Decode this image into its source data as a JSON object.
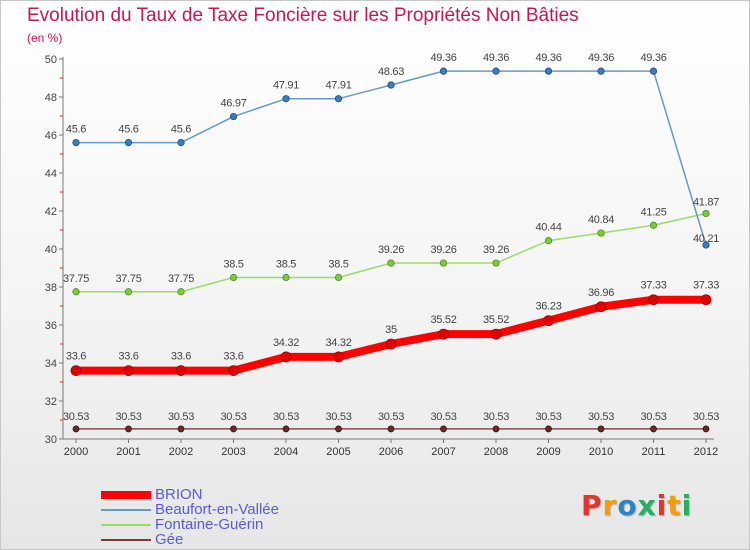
{
  "chart_data": {
    "type": "line",
    "title": "Evolution du Taux de Taxe Foncière sur les Propriétés Non Bâties",
    "ylabel": "(en %)",
    "xlabel": "",
    "x": [
      "2000",
      "2001",
      "2002",
      "2003",
      "2004",
      "2005",
      "2006",
      "2007",
      "2008",
      "2009",
      "2010",
      "2011",
      "2012"
    ],
    "ylim": [
      30,
      50
    ],
    "yticks": [
      30,
      32,
      34,
      36,
      38,
      40,
      42,
      44,
      46,
      48,
      50
    ],
    "grid": false,
    "legend_position": "bottom-left",
    "series": [
      {
        "name": "BRION",
        "color": "#ff0000",
        "values": [
          33.6,
          33.6,
          33.6,
          33.6,
          34.32,
          34.32,
          35,
          35.52,
          35.52,
          36.23,
          36.96,
          37.33,
          37.33
        ],
        "labels": [
          "33.6",
          "33.6",
          "33.6",
          "33.6",
          "34.32",
          "34.32",
          "35",
          "35.52",
          "35.52",
          "36.23",
          "36.96",
          "37.33",
          "37.33"
        ]
      },
      {
        "name": "Beaufort-en-Vallée",
        "color": "#6699cc",
        "values": [
          45.6,
          45.6,
          45.6,
          46.97,
          47.91,
          47.91,
          48.63,
          49.36,
          49.36,
          49.36,
          49.36,
          49.36,
          40.21
        ],
        "labels": [
          "45.6",
          "45.6",
          "45.6",
          "46.97",
          "47.91",
          "47.91",
          "48.63",
          "49.36",
          "49.36",
          "49.36",
          "49.36",
          "49.36",
          "40.21"
        ]
      },
      {
        "name": "Fontaine-Guérin",
        "color": "#99dd66",
        "values": [
          37.75,
          37.75,
          37.75,
          38.5,
          38.5,
          38.5,
          39.26,
          39.26,
          39.26,
          40.44,
          40.84,
          41.25,
          41.87
        ],
        "labels": [
          "37.75",
          "37.75",
          "37.75",
          "38.5",
          "38.5",
          "38.5",
          "39.26",
          "39.26",
          "39.26",
          "40.44",
          "40.84",
          "41.25",
          "41.87"
        ]
      },
      {
        "name": "Gée",
        "color": "#7a3b3b",
        "values": [
          30.53,
          30.53,
          30.53,
          30.53,
          30.53,
          30.53,
          30.53,
          30.53,
          30.53,
          30.53,
          30.53,
          30.53,
          30.53
        ],
        "labels": [
          "30.53",
          "30.53",
          "30.53",
          "30.53",
          "30.53",
          "30.53",
          "30.53",
          "30.53",
          "30.53",
          "30.53",
          "30.53",
          "30.53",
          "30.53"
        ]
      }
    ]
  },
  "logo": {
    "text": "Proxiti",
    "colors": [
      "#e2342b",
      "#f39c12",
      "#2e86c1",
      "#27ae60",
      "#e2342b",
      "#f39c12",
      "#27ae60"
    ]
  }
}
